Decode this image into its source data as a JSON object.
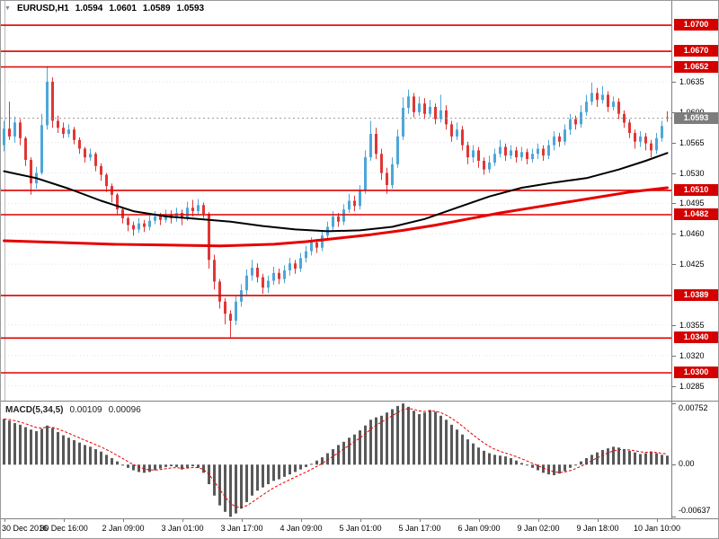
{
  "header": {
    "dropdown_icon": "▼",
    "symbol": "EURUSD,H1",
    "open": "1.0594",
    "high": "1.0601",
    "low": "1.0589",
    "close": "1.0593"
  },
  "colors": {
    "bull": "#4da6d9",
    "bear": "#e03636",
    "ma_black": "#000000",
    "ma_red": "#e60000",
    "level": "#dd0000",
    "level_label_bg": "#d40000",
    "price_label_bg": "#7d7d7d",
    "macd_bar": "#595959",
    "macd_signal": "#e60000",
    "grid": "#e2e2e2",
    "current_line": "#9a9a9a"
  },
  "chart_data": [
    {
      "type": "candlestick",
      "title": "EURUSD,H1",
      "y_axis": {
        "price_at_top": 1.0728,
        "price_at_bottom": 1.0268,
        "ticks": [
          "1.0635",
          "1.0600",
          "1.0565",
          "1.0530",
          "1.0495",
          "1.0460",
          "1.0425",
          "1.0355",
          "1.0320",
          "1.0285"
        ]
      },
      "x_axis": {
        "labels": [
          "30 Dec 2016",
          "30 Dec 16:00",
          "2 Jan 09:00",
          "3 Jan 01:00",
          "3 Jan 17:00",
          "4 Jan 09:00",
          "5 Jan 01:00",
          "5 Jan 17:00",
          "6 Jan 09:00",
          "9 Jan 02:00",
          "9 Jan 18:00",
          "10 Jan 10:00"
        ],
        "candle_index": [
          0,
          11,
          22,
          33,
          44,
          55,
          66,
          77,
          88,
          99,
          110,
          121
        ]
      },
      "levels": [
        {
          "price": 1.07,
          "label": "1.0700"
        },
        {
          "price": 1.067,
          "label": "1.0670"
        },
        {
          "price": 1.0652,
          "label": "1.0652"
        },
        {
          "price": 1.051,
          "label": "1.0510"
        },
        {
          "price": 1.0482,
          "label": "1.0482"
        },
        {
          "price": 1.0389,
          "label": "1.0389"
        },
        {
          "price": 1.034,
          "label": "1.0340"
        },
        {
          "price": 1.03,
          "label": "1.0300"
        }
      ],
      "current_price": {
        "price": 1.0593,
        "label": "1.0593"
      },
      "moving_averages": [
        {
          "name": "ma-black",
          "color_key": "ma_black",
          "width": 2,
          "points": [
            [
              0,
              1.0532
            ],
            [
              6,
              1.0524
            ],
            [
              12,
              1.0512
            ],
            [
              18,
              1.0498
            ],
            [
              24,
              1.0486
            ],
            [
              30,
              1.048
            ],
            [
              36,
              1.0477
            ],
            [
              42,
              1.0474
            ],
            [
              48,
              1.0469
            ],
            [
              54,
              1.0465
            ],
            [
              60,
              1.0463
            ],
            [
              66,
              1.0464
            ],
            [
              72,
              1.0468
            ],
            [
              78,
              1.0477
            ],
            [
              84,
              1.049
            ],
            [
              90,
              1.0503
            ],
            [
              96,
              1.0513
            ],
            [
              102,
              1.0519
            ],
            [
              108,
              1.0524
            ],
            [
              114,
              1.0534
            ],
            [
              119,
              1.0544
            ],
            [
              123,
              1.0553
            ]
          ]
        },
        {
          "name": "ma-red",
          "color_key": "ma_red",
          "width": 3,
          "points": [
            [
              0,
              1.0452
            ],
            [
              10,
              1.045
            ],
            [
              20,
              1.0448
            ],
            [
              30,
              1.0447
            ],
            [
              40,
              1.0446
            ],
            [
              50,
              1.0448
            ],
            [
              56,
              1.0451
            ],
            [
              62,
              1.0455
            ],
            [
              68,
              1.0459
            ],
            [
              74,
              1.0464
            ],
            [
              80,
              1.047
            ],
            [
              86,
              1.0477
            ],
            [
              92,
              1.0484
            ],
            [
              98,
              1.049
            ],
            [
              104,
              1.0496
            ],
            [
              110,
              1.0502
            ],
            [
              116,
              1.0508
            ],
            [
              123,
              1.0513
            ]
          ]
        }
      ],
      "candles": [
        [
          1.0562,
          1.059,
          1.0555,
          1.0581
        ],
        [
          1.0581,
          1.0612,
          1.0568,
          1.0572
        ],
        [
          1.0572,
          1.0595,
          1.0565,
          1.0588
        ],
        [
          1.0588,
          1.0592,
          1.0562,
          1.057
        ],
        [
          1.057,
          1.0572,
          1.0538,
          1.0545
        ],
        [
          1.0545,
          1.0548,
          1.0505,
          1.0518
        ],
        [
          1.0518,
          1.0537,
          1.0512,
          1.053
        ],
        [
          1.053,
          1.0598,
          1.0528,
          1.0585
        ],
        [
          1.0585,
          1.0653,
          1.058,
          1.0635
        ],
        [
          1.0635,
          1.064,
          1.0582,
          1.059
        ],
        [
          1.059,
          1.0596,
          1.0576,
          1.0582
        ],
        [
          1.0582,
          1.0588,
          1.057,
          1.0575
        ],
        [
          1.0575,
          1.0586,
          1.0571,
          1.058
        ],
        [
          1.058,
          1.0583,
          1.0563,
          1.0568
        ],
        [
          1.0568,
          1.0571,
          1.0552,
          1.0558
        ],
        [
          1.0558,
          1.056,
          1.0542,
          1.0548
        ],
        [
          1.0548,
          1.0558,
          1.0544,
          1.0552
        ],
        [
          1.0552,
          1.0554,
          1.0532,
          1.0538
        ],
        [
          1.0538,
          1.0541,
          1.0521,
          1.0528
        ],
        [
          1.0528,
          1.053,
          1.0508,
          1.0515
        ],
        [
          1.0515,
          1.0518,
          1.0496,
          1.0505
        ],
        [
          1.0505,
          1.0507,
          1.0482,
          1.0488
        ],
        [
          1.0488,
          1.049,
          1.0472,
          1.0478
        ],
        [
          1.0478,
          1.048,
          1.0463,
          1.047
        ],
        [
          1.047,
          1.0474,
          1.0458,
          1.0465
        ],
        [
          1.0465,
          1.0478,
          1.0461,
          1.0472
        ],
        [
          1.0472,
          1.0476,
          1.0462,
          1.0468
        ],
        [
          1.0468,
          1.0481,
          1.0464,
          1.0475
        ],
        [
          1.0475,
          1.0486,
          1.0471,
          1.048
        ],
        [
          1.048,
          1.0484,
          1.047,
          1.0476
        ],
        [
          1.0476,
          1.0488,
          1.0473,
          1.0482
        ],
        [
          1.0482,
          1.0487,
          1.0472,
          1.0478
        ],
        [
          1.0478,
          1.049,
          1.0474,
          1.0484
        ],
        [
          1.0484,
          1.0488,
          1.047,
          1.0479
        ],
        [
          1.0479,
          1.0497,
          1.0475,
          1.049
        ],
        [
          1.049,
          1.0499,
          1.048,
          1.0486
        ],
        [
          1.0486,
          1.05,
          1.0482,
          1.0493
        ],
        [
          1.0493,
          1.0496,
          1.0478,
          1.0483
        ],
        [
          1.0483,
          1.0485,
          1.042,
          1.043
        ],
        [
          1.043,
          1.0436,
          1.0396,
          1.0405
        ],
        [
          1.0405,
          1.0408,
          1.0374,
          1.0382
        ],
        [
          1.0382,
          1.0386,
          1.0356,
          1.0368
        ],
        [
          1.0368,
          1.0372,
          1.0341,
          1.036
        ],
        [
          1.036,
          1.0388,
          1.0355,
          1.0382
        ],
        [
          1.0382,
          1.0402,
          1.0376,
          1.0395
        ],
        [
          1.0395,
          1.0419,
          1.039,
          1.0412
        ],
        [
          1.0412,
          1.043,
          1.0406,
          1.0421
        ],
        [
          1.0421,
          1.0426,
          1.0404,
          1.041
        ],
        [
          1.041,
          1.0414,
          1.0391,
          1.0398
        ],
        [
          1.0398,
          1.0412,
          1.0392,
          1.0406
        ],
        [
          1.0406,
          1.0422,
          1.0401,
          1.0415
        ],
        [
          1.0415,
          1.042,
          1.0402,
          1.0408
        ],
        [
          1.0408,
          1.0424,
          1.0403,
          1.0418
        ],
        [
          1.0418,
          1.0432,
          1.0412,
          1.0426
        ],
        [
          1.0426,
          1.043,
          1.0414,
          1.042
        ],
        [
          1.042,
          1.0438,
          1.0416,
          1.0432
        ],
        [
          1.0432,
          1.0446,
          1.0427,
          1.044
        ],
        [
          1.044,
          1.0456,
          1.0435,
          1.045
        ],
        [
          1.045,
          1.0454,
          1.0438,
          1.0444
        ],
        [
          1.0444,
          1.0464,
          1.044,
          1.0458
        ],
        [
          1.0458,
          1.0474,
          1.0452,
          1.0468
        ],
        [
          1.0468,
          1.0486,
          1.0462,
          1.048
        ],
        [
          1.048,
          1.0484,
          1.0468,
          1.0474
        ],
        [
          1.0474,
          1.0494,
          1.047,
          1.0488
        ],
        [
          1.0488,
          1.0506,
          1.0484,
          1.0498
        ],
        [
          1.0498,
          1.0504,
          1.0486,
          1.0492
        ],
        [
          1.0492,
          1.0516,
          1.0488,
          1.051
        ],
        [
          1.051,
          1.0556,
          1.0506,
          1.0548
        ],
        [
          1.0548,
          1.059,
          1.0544,
          1.0575
        ],
        [
          1.0575,
          1.0582,
          1.0546,
          1.0552
        ],
        [
          1.0552,
          1.0558,
          1.0522,
          1.053
        ],
        [
          1.053,
          1.0536,
          1.0506,
          1.0516
        ],
        [
          1.0516,
          1.0548,
          1.0512,
          1.054
        ],
        [
          1.054,
          1.058,
          1.0536,
          1.0572
        ],
        [
          1.0572,
          1.0617,
          1.0568,
          1.0605
        ],
        [
          1.0605,
          1.0626,
          1.0598,
          1.0618
        ],
        [
          1.0618,
          1.0622,
          1.0594,
          1.06
        ],
        [
          1.06,
          1.0618,
          1.0596,
          1.061
        ],
        [
          1.061,
          1.0616,
          1.0592,
          1.0598
        ],
        [
          1.0598,
          1.0614,
          1.0594,
          1.0606
        ],
        [
          1.0606,
          1.061,
          1.0586,
          1.0592
        ],
        [
          1.0592,
          1.062,
          1.0588,
          1.0602
        ],
        [
          1.0602,
          1.0608,
          1.058,
          1.0586
        ],
        [
          1.0586,
          1.059,
          1.0566,
          1.0572
        ],
        [
          1.0572,
          1.0588,
          1.0568,
          1.058
        ],
        [
          1.058,
          1.0584,
          1.0556,
          1.0562
        ],
        [
          1.0562,
          1.0566,
          1.054,
          1.0548
        ],
        [
          1.0548,
          1.0562,
          1.0542,
          1.0556
        ],
        [
          1.0556,
          1.056,
          1.0536,
          1.0544
        ],
        [
          1.0544,
          1.0548,
          1.0528,
          1.0534
        ],
        [
          1.0534,
          1.055,
          1.053,
          1.0542
        ],
        [
          1.0542,
          1.0558,
          1.0538,
          1.0552
        ],
        [
          1.0552,
          1.0568,
          1.0548,
          1.056
        ],
        [
          1.056,
          1.0564,
          1.0544,
          1.055
        ],
        [
          1.055,
          1.0562,
          1.0546,
          1.0556
        ],
        [
          1.0556,
          1.056,
          1.0542,
          1.0548
        ],
        [
          1.0548,
          1.056,
          1.0544,
          1.0554
        ],
        [
          1.0554,
          1.0558,
          1.054,
          1.0546
        ],
        [
          1.0546,
          1.0558,
          1.0542,
          1.0552
        ],
        [
          1.0552,
          1.0564,
          1.0546,
          1.0558
        ],
        [
          1.0558,
          1.0562,
          1.0544,
          1.055
        ],
        [
          1.055,
          1.0568,
          1.0546,
          1.0562
        ],
        [
          1.0562,
          1.0578,
          1.0556,
          1.0572
        ],
        [
          1.0572,
          1.0576,
          1.056,
          1.0566
        ],
        [
          1.0566,
          1.0586,
          1.0562,
          1.058
        ],
        [
          1.058,
          1.0598,
          1.0574,
          1.0592
        ],
        [
          1.0592,
          1.0596,
          1.058,
          1.0586
        ],
        [
          1.0586,
          1.0608,
          1.0582,
          1.06
        ],
        [
          1.06,
          1.062,
          1.0596,
          1.0612
        ],
        [
          1.0612,
          1.0634,
          1.0608,
          1.0622
        ],
        [
          1.0622,
          1.0628,
          1.0606,
          1.0614
        ],
        [
          1.0614,
          1.063,
          1.061,
          1.062
        ],
        [
          1.062,
          1.0624,
          1.06,
          1.0606
        ],
        [
          1.0606,
          1.0618,
          1.0602,
          1.0612
        ],
        [
          1.0612,
          1.0616,
          1.0592,
          1.0598
        ],
        [
          1.0598,
          1.0602,
          1.0582,
          1.0588
        ],
        [
          1.0588,
          1.0592,
          1.057,
          1.0576
        ],
        [
          1.0576,
          1.058,
          1.0558,
          1.0566
        ],
        [
          1.0566,
          1.0578,
          1.056,
          1.0572
        ],
        [
          1.0572,
          1.0576,
          1.0556,
          1.0564
        ],
        [
          1.0564,
          1.0568,
          1.0548,
          1.0556
        ],
        [
          1.0556,
          1.0576,
          1.0552,
          1.057
        ],
        [
          1.057,
          1.059,
          1.0566,
          1.0584
        ],
        [
          1.0594,
          1.0601,
          1.0589,
          1.0593
        ]
      ]
    },
    {
      "type": "bar",
      "label": "MACD(5,34,5)",
      "current_values": {
        "macd": "0.00109",
        "signal": "0.00096"
      },
      "y_axis": {
        "max": 0.00752,
        "min": -0.00637,
        "ticks": [
          "0.00752",
          "0.00",
          "-0.00637"
        ]
      },
      "signal_smoothing": 5,
      "values": [
        0.0056,
        0.0054,
        0.0051,
        0.0049,
        0.0046,
        0.0043,
        0.0041,
        0.0044,
        0.0048,
        0.0045,
        0.004,
        0.0036,
        0.0033,
        0.003,
        0.0027,
        0.0024,
        0.0022,
        0.0019,
        0.0016,
        0.0012,
        0.0008,
        0.0004,
        0.0,
        -0.0004,
        -0.0007,
        -0.0009,
        -0.001,
        -0.0009,
        -0.0007,
        -0.0005,
        -0.0003,
        -0.0002,
        -0.0003,
        -0.0006,
        -0.0004,
        -0.0002,
        -0.0004,
        -0.001,
        -0.0024,
        -0.0038,
        -0.005,
        -0.0058,
        -0.0064,
        -0.006,
        -0.0054,
        -0.0046,
        -0.0038,
        -0.0032,
        -0.0028,
        -0.0024,
        -0.002,
        -0.0018,
        -0.0015,
        -0.0012,
        -0.0009,
        -0.0006,
        -0.0003,
        0.0001,
        0.0005,
        0.0009,
        0.0014,
        0.0019,
        0.0024,
        0.0028,
        0.0033,
        0.0037,
        0.0042,
        0.0048,
        0.0055,
        0.0058,
        0.006,
        0.0064,
        0.0068,
        0.0072,
        0.0075,
        0.0071,
        0.0066,
        0.0062,
        0.0064,
        0.0067,
        0.0065,
        0.006,
        0.0055,
        0.0049,
        0.0043,
        0.0037,
        0.0031,
        0.0026,
        0.0021,
        0.0017,
        0.0014,
        0.0012,
        0.0011,
        0.001,
        0.0008,
        0.0005,
        0.0002,
        -0.0001,
        -0.0004,
        -0.0007,
        -0.001,
        -0.0012,
        -0.0013,
        -0.0011,
        -0.0008,
        -0.0004,
        0.0,
        0.0004,
        0.0008,
        0.0012,
        0.0015,
        0.0018,
        0.002,
        0.0022,
        0.0021,
        0.0019,
        0.0017,
        0.0015,
        0.0013,
        0.0014,
        0.0016,
        0.0014,
        0.0012,
        0.0011
      ]
    }
  ]
}
